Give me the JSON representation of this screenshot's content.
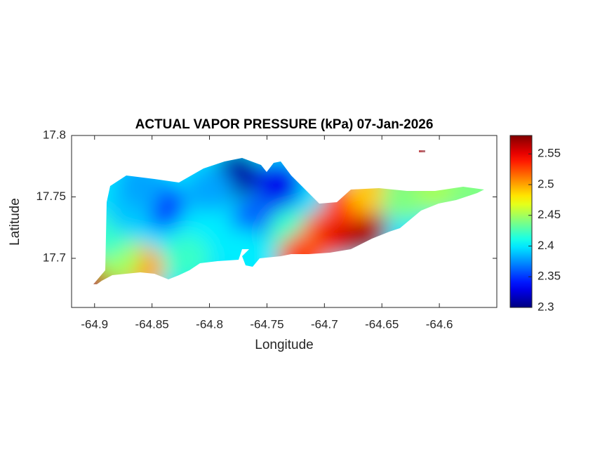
{
  "chart_data": {
    "type": "contour-map",
    "title": "ACTUAL VAPOR PRESSURE (kPa) 07-Jan-2026",
    "x_label": "Longitude",
    "y_label": "Latitude",
    "xlim": [
      -64.92,
      -64.55
    ],
    "xticks": [
      -64.9,
      -64.85,
      -64.8,
      -64.75,
      -64.7,
      -64.65,
      -64.6
    ],
    "ylim": [
      17.66,
      17.8
    ],
    "yticks": [
      17.7,
      17.75,
      17.8
    ],
    "colormap": "jet",
    "clim": [
      2.3,
      2.58
    ],
    "cticks": [
      2.3,
      2.35,
      2.4,
      2.45,
      2.5,
      2.55
    ],
    "x": [
      -64.895,
      -64.86,
      -64.88,
      -64.89,
      -64.842,
      -64.87,
      -64.86,
      -64.776,
      -64.74,
      -64.8,
      -64.8,
      -64.76,
      -64.82,
      -64.77,
      -64.73,
      -64.72,
      -64.7,
      -64.684,
      -64.666,
      -64.68,
      -64.66,
      -64.63,
      -64.6,
      -64.57,
      -64.625
    ],
    "y": [
      17.685,
      17.692,
      17.7,
      17.72,
      17.743,
      17.74,
      17.76,
      17.768,
      17.76,
      17.755,
      17.72,
      17.73,
      17.7,
      17.705,
      17.72,
      17.7,
      17.72,
      17.72,
      17.723,
      17.745,
      17.755,
      17.75,
      17.755,
      17.755,
      17.787
    ],
    "values": [
      2.56,
      2.5,
      2.45,
      2.42,
      2.35,
      2.39,
      2.38,
      2.31,
      2.33,
      2.38,
      2.4,
      2.36,
      2.42,
      2.4,
      2.42,
      2.53,
      2.52,
      2.55,
      2.57,
      2.53,
      2.49,
      2.44,
      2.45,
      2.44,
      2.56
    ]
  }
}
